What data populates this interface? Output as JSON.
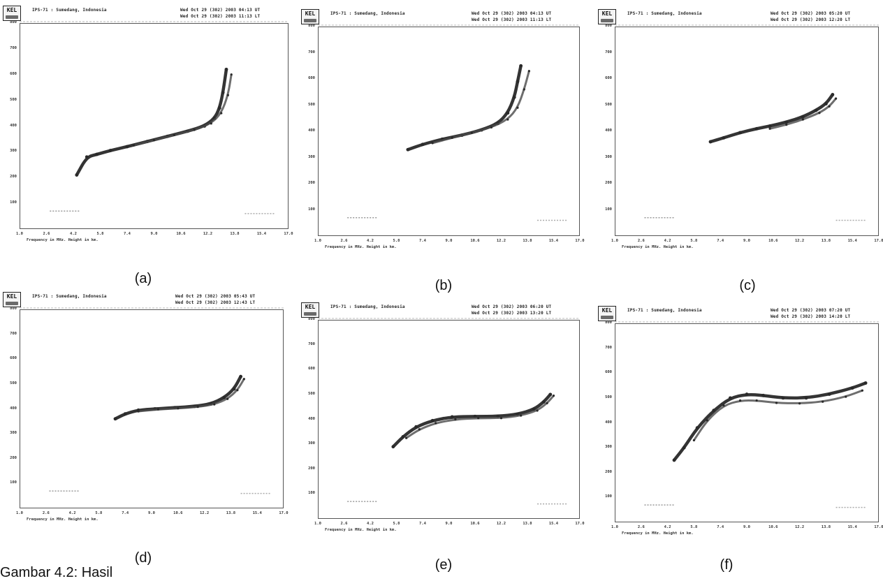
{
  "figure": {
    "bottom_caption": "Gambar 4.2: Hasil"
  },
  "chart_data": [
    {
      "type": "scatter",
      "panel_label": "(a)",
      "station": "IPS-71 : Sumedang, Indonesia",
      "time_ut": "Wed Oct 29 (302) 2003 04:13 UT",
      "time_lt": "Wed Oct 29 (302) 2003 11:13 LT",
      "xlabel": "Frequency in MHz. Height in km.",
      "x_ticks": [
        "1.0",
        "2.6",
        "4.2",
        "5.8",
        "7.4",
        "9.0",
        "10.6",
        "12.2",
        "13.8",
        "15.4",
        "17.0"
      ],
      "y_ticks": [
        "800",
        "700",
        "600",
        "500",
        "400",
        "300",
        "200",
        "100"
      ],
      "xlim": [
        1,
        17
      ],
      "ylim": [
        0,
        800
      ],
      "traces": [
        {
          "name": "o",
          "x": [
            4.4,
            5.0,
            5.6,
            6.4,
            7.4,
            8.6,
            9.8,
            11.0,
            12.0,
            12.6,
            12.9,
            13.1,
            13.3
          ],
          "y": [
            210,
            280,
            290,
            305,
            320,
            340,
            360,
            380,
            400,
            430,
            470,
            530,
            620
          ]
        },
        {
          "name": "x",
          "x": [
            7.8,
            9.0,
            10.2,
            11.4,
            12.4,
            13.0,
            13.4,
            13.6
          ],
          "y": [
            325,
            345,
            365,
            385,
            410,
            450,
            520,
            600
          ]
        }
      ]
    },
    {
      "type": "scatter",
      "panel_label": "(b)",
      "station": "IPS-71 : Sumedang, Indonesia",
      "time_ut": "Wed Oct 29 (302) 2003 04:13 UT",
      "time_lt": "Wed Oct 29 (302) 2003 11:13 LT",
      "xlabel": "Frequency in MHz. Height in km.",
      "x_ticks": [
        "1.0",
        "2.6",
        "4.2",
        "5.8",
        "7.4",
        "9.0",
        "10.6",
        "12.2",
        "13.8",
        "15.4",
        "17.0"
      ],
      "y_ticks": [
        "800",
        "700",
        "600",
        "500",
        "400",
        "300",
        "200",
        "100"
      ],
      "xlim": [
        1,
        17
      ],
      "ylim": [
        0,
        800
      ],
      "traces": [
        {
          "name": "o",
          "x": [
            6.5,
            7.4,
            8.6,
            9.8,
            11.0,
            12.0,
            12.6,
            13.0,
            13.2,
            13.4
          ],
          "y": [
            330,
            350,
            370,
            385,
            405,
            430,
            470,
            530,
            590,
            650
          ]
        },
        {
          "name": "x",
          "x": [
            8.0,
            9.2,
            10.4,
            11.6,
            12.6,
            13.2,
            13.6,
            13.9
          ],
          "y": [
            355,
            375,
            395,
            415,
            445,
            490,
            560,
            630
          ]
        }
      ]
    },
    {
      "type": "scatter",
      "panel_label": "(c)",
      "station": "IPS-71 : Sumedang, Indonesia",
      "time_ut": "Wed Oct 29 (302) 2003 05:20 UT",
      "time_lt": "Wed Oct 29 (302) 2003 12:20 LT",
      "xlabel": "Frequency in MHz. Height in km.",
      "x_ticks": [
        "1.0",
        "2.6",
        "4.2",
        "5.8",
        "7.4",
        "9.0",
        "10.6",
        "12.2",
        "13.8",
        "15.4",
        "17.0"
      ],
      "y_ticks": [
        "800",
        "700",
        "600",
        "500",
        "400",
        "300",
        "200",
        "100"
      ],
      "xlim": [
        1,
        17
      ],
      "ylim": [
        0,
        800
      ],
      "traces": [
        {
          "name": "o",
          "x": [
            6.8,
            7.6,
            8.6,
            9.6,
            10.4,
            11.4,
            12.4,
            13.2,
            13.8,
            14.2
          ],
          "y": [
            360,
            375,
            395,
            410,
            420,
            435,
            455,
            480,
            505,
            540
          ]
        },
        {
          "name": "x",
          "x": [
            10.4,
            11.4,
            12.4,
            13.4,
            14.0,
            14.4
          ],
          "y": [
            410,
            425,
            445,
            470,
            495,
            525
          ]
        }
      ]
    },
    {
      "type": "scatter",
      "panel_label": "(d)",
      "station": "IPS-71 : Sumedang, Indonesia",
      "time_ut": "Wed Oct 29 (302) 2003 05:43 UT",
      "time_lt": "Wed Oct 29 (302) 2003 12:43 LT",
      "xlabel": "Frequency in MHz. Height in km.",
      "x_ticks": [
        "1.0",
        "2.6",
        "4.2",
        "5.8",
        "7.4",
        "9.0",
        "10.6",
        "12.2",
        "13.8",
        "15.4",
        "17.0"
      ],
      "y_ticks": [
        "800",
        "700",
        "600",
        "500",
        "400",
        "300",
        "200",
        "100"
      ],
      "xlim": [
        1,
        17
      ],
      "ylim": [
        0,
        800
      ],
      "traces": [
        {
          "name": "o",
          "x": [
            6.8,
            7.4,
            8.2,
            9.2,
            10.4,
            11.6,
            12.6,
            13.4,
            14.0,
            14.4
          ],
          "y": [
            360,
            380,
            395,
            400,
            405,
            410,
            420,
            445,
            480,
            530
          ]
        },
        {
          "name": "x",
          "x": [
            8.2,
            9.4,
            10.6,
            11.8,
            12.8,
            13.6,
            14.2,
            14.6
          ],
          "y": [
            390,
            398,
            402,
            408,
            418,
            440,
            475,
            520
          ]
        }
      ]
    },
    {
      "type": "scatter",
      "panel_label": "(e)",
      "station": "IPS-71 : Sumedang, Indonesia",
      "time_ut": "Wed Oct 29 (302) 2003 06:20 UT",
      "time_lt": "Wed Oct 29 (302) 2003 13:20 LT",
      "xlabel": "Frequency in MHz. Height in km.",
      "x_ticks": [
        "1.0",
        "2.6",
        "4.2",
        "5.8",
        "7.4",
        "9.0",
        "10.6",
        "12.2",
        "13.8",
        "15.4",
        "17.0"
      ],
      "y_ticks": [
        "800",
        "700",
        "600",
        "500",
        "400",
        "300",
        "200",
        "100"
      ],
      "xlim": [
        1,
        17
      ],
      "ylim": [
        0,
        800
      ],
      "traces": [
        {
          "name": "o",
          "x": [
            5.6,
            6.2,
            7.0,
            8.0,
            9.2,
            10.6,
            12.0,
            13.2,
            14.2,
            14.8,
            15.2
          ],
          "y": [
            290,
            330,
            370,
            395,
            410,
            412,
            412,
            420,
            440,
            470,
            500
          ]
        },
        {
          "name": "x",
          "x": [
            6.4,
            7.2,
            8.2,
            9.4,
            10.8,
            12.2,
            13.4,
            14.4,
            15.0,
            15.4
          ],
          "y": [
            325,
            360,
            385,
            400,
            405,
            405,
            415,
            435,
            465,
            495
          ]
        }
      ]
    },
    {
      "type": "scatter",
      "panel_label": "(f)",
      "station": "IPS-71 : Sumedang, Indonesia",
      "time_ut": "Wed Oct 29 (302) 2003 07:20 UT",
      "time_lt": "Wed Oct 29 (302) 2003 14:20 LT",
      "xlabel": "Frequency in MHz. Height in km.",
      "x_ticks": [
        "1.0",
        "2.6",
        "4.2",
        "5.8",
        "7.4",
        "9.0",
        "10.6",
        "12.2",
        "13.8",
        "15.4",
        "17.0"
      ],
      "y_ticks": [
        "800",
        "700",
        "600",
        "500",
        "400",
        "300",
        "200",
        "100"
      ],
      "xlim": [
        1,
        17
      ],
      "ylim": [
        0,
        800
      ],
      "traces": [
        {
          "name": "o",
          "x": [
            4.6,
            5.2,
            6.0,
            7.0,
            8.0,
            9.0,
            10.0,
            11.2,
            12.6,
            14.0,
            15.4,
            16.2
          ],
          "y": [
            250,
            300,
            380,
            450,
            500,
            515,
            510,
            500,
            500,
            515,
            540,
            560
          ]
        },
        {
          "name": "x",
          "x": [
            5.8,
            6.6,
            7.6,
            8.6,
            9.6,
            10.8,
            12.2,
            13.6,
            15.0,
            16.0
          ],
          "y": [
            330,
            410,
            470,
            490,
            490,
            480,
            478,
            485,
            505,
            530
          ]
        }
      ]
    }
  ]
}
